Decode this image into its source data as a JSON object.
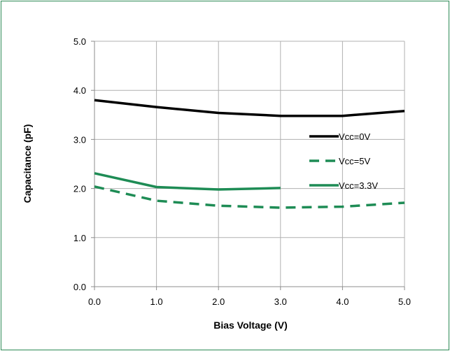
{
  "chart_data": {
    "type": "line",
    "xlabel": "Bias Voltage (V)",
    "ylabel": "Capacitance (pF)",
    "xlim": [
      0,
      5
    ],
    "ylim": [
      0,
      5
    ],
    "x_ticks": [
      "0.0",
      "1.0",
      "2.0",
      "3.0",
      "4.0",
      "5.0"
    ],
    "y_ticks": [
      "0.0",
      "1.0",
      "2.0",
      "3.0",
      "4.0",
      "5.0"
    ],
    "grid": true,
    "legend_position": "right",
    "series": [
      {
        "name": "Vcc=0V",
        "color": "#000000",
        "style": "solid",
        "x": [
          0,
          1,
          2,
          3,
          4,
          5
        ],
        "y": [
          3.8,
          3.66,
          3.54,
          3.48,
          3.48,
          3.58
        ]
      },
      {
        "name": "Vcc=5V",
        "color": "#1e8c55",
        "style": "dashed",
        "x": [
          0,
          1,
          2,
          3,
          4,
          5
        ],
        "y": [
          2.04,
          1.75,
          1.65,
          1.61,
          1.63,
          1.71
        ]
      },
      {
        "name": "Vcc=3.3V",
        "color": "#1e8c55",
        "style": "solid",
        "x": [
          0,
          1,
          2,
          3
        ],
        "y": [
          2.31,
          2.03,
          1.98,
          2.01
        ]
      }
    ]
  }
}
